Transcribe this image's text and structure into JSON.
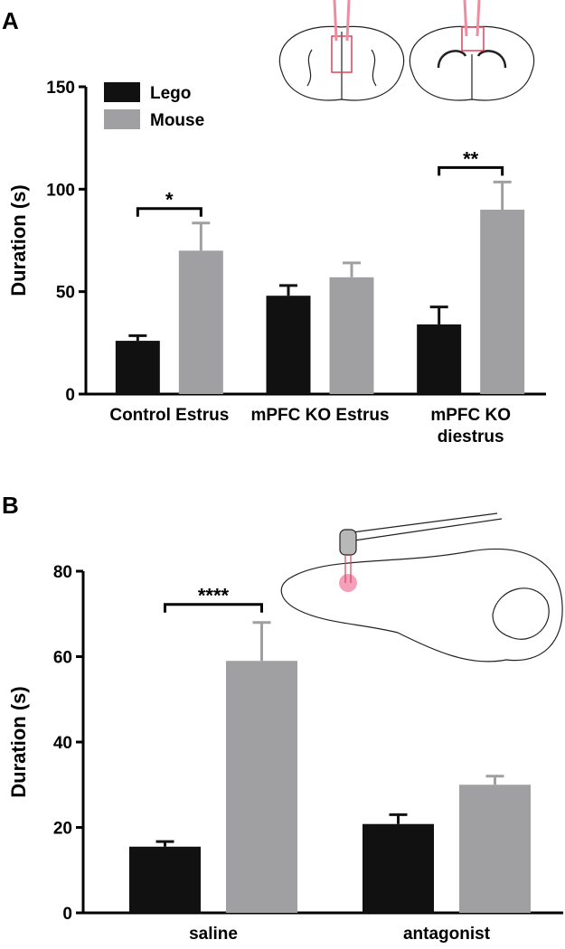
{
  "chart_data": [
    {
      "type": "bar",
      "panel": "A",
      "y_label": "Duration (s)",
      "categories": [
        "Control Estrus",
        "mPFC KO Estrus",
        "mPFC KO diestrus"
      ],
      "series": [
        {
          "name": "Lego",
          "color": "#111111",
          "values": [
            26,
            48,
            34
          ],
          "errors": [
            2.5,
            5,
            8.5
          ]
        },
        {
          "name": "Mouse",
          "color": "#a0a0a2",
          "values": [
            70,
            57,
            90
          ],
          "errors": [
            13.5,
            7,
            13.5
          ]
        }
      ],
      "ylim": [
        0,
        150
      ],
      "yticks": [
        0,
        50,
        100,
        150
      ],
      "legend": "top-left",
      "annotations": [
        {
          "text": "*",
          "category": 0
        },
        {
          "text": "**",
          "category": 2
        }
      ]
    },
    {
      "type": "bar",
      "panel": "B",
      "y_label": "Duration (s)",
      "categories": [
        "saline",
        "antagonist"
      ],
      "series": [
        {
          "name": "Lego",
          "color": "#111111",
          "values": [
            15.5,
            20.8
          ],
          "errors": [
            1.2,
            2.2
          ]
        },
        {
          "name": "Mouse",
          "color": "#a0a0a2",
          "values": [
            59,
            30
          ],
          "errors": [
            9,
            2
          ]
        }
      ],
      "ylim": [
        0,
        80
      ],
      "yticks": [
        0,
        20,
        40,
        60,
        80
      ],
      "annotations": [
        {
          "text": "****",
          "category": 0
        }
      ]
    }
  ]
}
